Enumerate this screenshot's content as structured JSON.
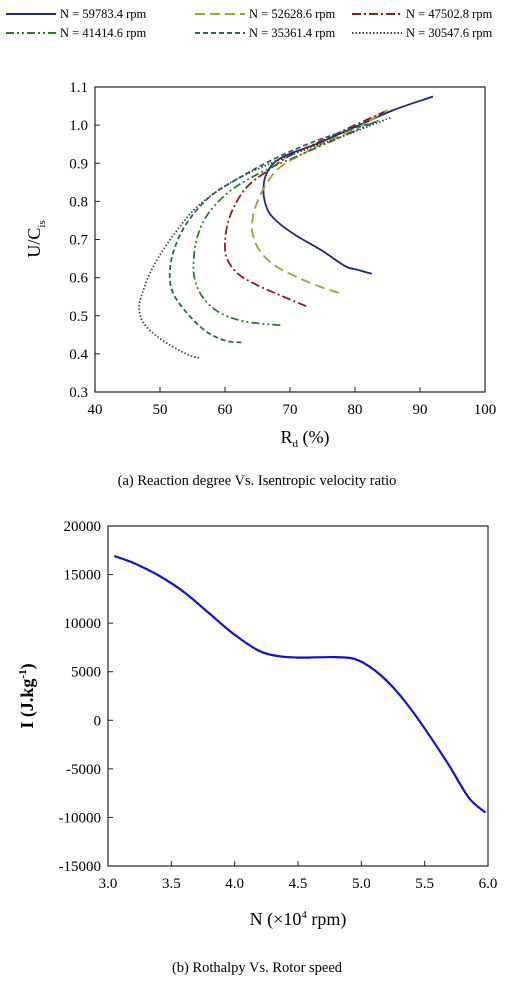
{
  "charts": [
    {
      "caption": "(a) Reaction degree Vs. Isentropic velocity ratio",
      "xlabel": "R",
      "xlabel_sub": "d",
      "xlabel_unit": " (%)",
      "ylabel": "U/C",
      "ylabel_sub": "is"
    },
    {
      "caption": "(b) Rothalpy Vs. Rotor speed",
      "xlabel_pre": "N (×10",
      "xlabel_sup": "4",
      "xlabel_post": " rpm)",
      "ylabel_pre": "I (J.kg",
      "ylabel_sup": "-1",
      "ylabel_post": ")"
    }
  ],
  "chart_data": [
    {
      "type": "line",
      "title": "",
      "xlabel": "Rd (%)",
      "ylabel": "U/Cis",
      "xlim": [
        40,
        100
      ],
      "ylim": [
        0.3,
        1.1
      ],
      "xticks": [
        40,
        50,
        60,
        70,
        80,
        90,
        100
      ],
      "xtick_labels": [
        "40",
        "50",
        "60",
        "70",
        "80",
        "90",
        "100"
      ],
      "yticks": [
        0.3,
        0.4,
        0.5,
        0.6,
        0.7,
        0.8,
        0.9,
        1.0,
        1.1
      ],
      "ytick_labels": [
        "0.3",
        "0.4",
        "0.5",
        "0.6",
        "0.7",
        "0.8",
        "0.9",
        "1.0",
        "1.1"
      ],
      "grid": false,
      "legend_position": "top",
      "series": [
        {
          "name": "N = 59783.4 rpm",
          "color": "#1c2a78",
          "dash": "solid",
          "x": [
            82.6,
            80.5,
            78.5,
            75,
            71,
            68.5,
            66.8,
            66.0,
            66.0,
            66.6,
            67.8,
            70,
            74,
            78,
            82,
            86,
            92.0
          ],
          "y": [
            0.61,
            0.62,
            0.63,
            0.67,
            0.71,
            0.74,
            0.77,
            0.81,
            0.85,
            0.88,
            0.905,
            0.925,
            0.95,
            0.98,
            1.01,
            1.04,
            1.075
          ]
        },
        {
          "name": "N = 52628.6 rpm",
          "color": "#a3a332",
          "dash": "longdash",
          "x": [
            77.5,
            74,
            70,
            67,
            65,
            64.2,
            64.3,
            65,
            66.5,
            68.5,
            72,
            76,
            80,
            85.0
          ],
          "y": [
            0.56,
            0.58,
            0.61,
            0.64,
            0.68,
            0.72,
            0.76,
            0.8,
            0.85,
            0.89,
            0.925,
            0.96,
            0.99,
            1.04
          ]
        },
        {
          "name": "N = 47502.8 rpm",
          "color": "#8c1c1c",
          "dash": "dashdot",
          "x": [
            72.5,
            69,
            65,
            62,
            60.3,
            60.0,
            60.4,
            61.5,
            63.5,
            66.5,
            70,
            75,
            80,
            84.5
          ],
          "y": [
            0.525,
            0.55,
            0.58,
            0.61,
            0.65,
            0.69,
            0.74,
            0.79,
            0.84,
            0.88,
            0.92,
            0.96,
            1.0,
            1.035
          ]
        },
        {
          "name": "N = 41414.6 rpm",
          "color": "#2a7a2a",
          "dash": "dashdotdot",
          "x": [
            68.5,
            63,
            59,
            56.5,
            55.3,
            55.2,
            55.8,
            57.5,
            61,
            66,
            72,
            78,
            84.0
          ],
          "y": [
            0.475,
            0.485,
            0.51,
            0.55,
            0.6,
            0.65,
            0.71,
            0.77,
            0.83,
            0.88,
            0.925,
            0.97,
            1.015
          ]
        },
        {
          "name": "N = 35361.4 rpm",
          "color": "#1f6a66",
          "dash": "shortdash",
          "x": [
            62.5,
            60,
            57,
            54,
            52.0,
            51.5,
            52.1,
            54,
            57.5,
            62,
            68,
            75,
            83.5
          ],
          "y": [
            0.43,
            0.435,
            0.46,
            0.51,
            0.56,
            0.61,
            0.67,
            0.74,
            0.81,
            0.86,
            0.915,
            0.965,
            1.01
          ]
        },
        {
          "name": "N = 30547.6 rpm",
          "color": "#444444",
          "dash": "dotted",
          "x": [
            56,
            54,
            50,
            47.5,
            46.8,
            47.3,
            49,
            52,
            56,
            62,
            70,
            78,
            85.5
          ],
          "y": [
            0.39,
            0.4,
            0.44,
            0.48,
            0.52,
            0.56,
            0.63,
            0.71,
            0.79,
            0.86,
            0.92,
            0.97,
            1.02
          ]
        }
      ]
    },
    {
      "type": "line",
      "title": "",
      "xlabel": "N (×10^4 rpm)",
      "ylabel": "I (J.kg^-1)",
      "xlim": [
        3.0,
        6.0
      ],
      "ylim": [
        -15000,
        20000
      ],
      "xticks": [
        3.0,
        3.5,
        4.0,
        4.5,
        5.0,
        5.5,
        6.0
      ],
      "xtick_labels": [
        "3.0",
        "3.5",
        "4.0",
        "4.5",
        "5.0",
        "5.5",
        "6.0"
      ],
      "yticks": [
        -15000,
        -10000,
        -5000,
        0,
        5000,
        10000,
        15000,
        20000
      ],
      "ytick_labels": [
        "-15000",
        "-10000",
        "-5000",
        "0",
        "5000",
        "10000",
        "15000",
        "20000"
      ],
      "grid": false,
      "series": [
        {
          "color": "#1010d0",
          "x": [
            3.05,
            3.2,
            3.4,
            3.6,
            3.8,
            4.0,
            4.2,
            4.35,
            4.5,
            4.65,
            4.8,
            4.95,
            5.1,
            5.25,
            5.4,
            5.55,
            5.7,
            5.85,
            5.98
          ],
          "y": [
            16900,
            16200,
            14900,
            13200,
            11000,
            8800,
            7100,
            6600,
            6450,
            6480,
            6500,
            6300,
            5200,
            3400,
            1000,
            -1800,
            -4800,
            -8000,
            -9500
          ]
        }
      ]
    }
  ]
}
